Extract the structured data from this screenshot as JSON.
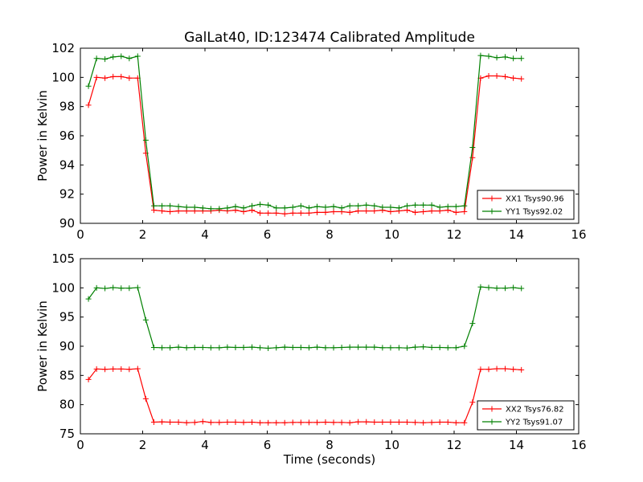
{
  "figure": {
    "title": "GalLat40, ID:123474 Calibrated Amplitude"
  },
  "chart_data": [
    {
      "type": "line",
      "title": "GalLat40, ID:123474 Calibrated Amplitude",
      "xlabel": "",
      "ylabel": "Power in Kelvin",
      "xlim": [
        0,
        16
      ],
      "ylim": [
        90,
        102
      ],
      "xticks": [
        "0",
        "2",
        "4",
        "6",
        "8",
        "10",
        "12",
        "14",
        "16"
      ],
      "yticks": [
        "90",
        "92",
        "94",
        "96",
        "98",
        "100",
        "102"
      ],
      "grid": false,
      "legend_position": "lower right",
      "x": [
        0.26,
        0.52,
        0.79,
        1.05,
        1.31,
        1.57,
        1.84,
        2.1,
        2.36,
        2.62,
        2.88,
        3.15,
        3.41,
        3.67,
        3.93,
        4.19,
        4.46,
        4.72,
        4.98,
        5.24,
        5.51,
        5.77,
        6.03,
        6.29,
        6.56,
        6.82,
        7.08,
        7.34,
        7.6,
        7.87,
        8.13,
        8.39,
        8.65,
        8.92,
        9.18,
        9.44,
        9.7,
        9.96,
        10.23,
        10.49,
        10.75,
        11.01,
        11.28,
        11.54,
        11.8,
        12.06,
        12.33,
        12.59,
        12.85,
        13.11,
        13.37,
        13.64,
        13.9,
        14.16
      ],
      "series": [
        {
          "name": "XX1 Tsys90.96",
          "color": "#ff0000",
          "values": [
            98.1,
            100.0,
            99.95,
            100.05,
            100.05,
            99.95,
            99.95,
            94.8,
            90.9,
            90.85,
            90.8,
            90.85,
            90.85,
            90.85,
            90.85,
            90.85,
            90.9,
            90.85,
            90.9,
            90.8,
            90.9,
            90.7,
            90.7,
            90.7,
            90.65,
            90.7,
            90.7,
            90.7,
            90.75,
            90.75,
            90.8,
            90.8,
            90.75,
            90.85,
            90.85,
            90.85,
            90.9,
            90.8,
            90.85,
            90.9,
            90.75,
            90.8,
            90.85,
            90.85,
            90.9,
            90.75,
            90.8,
            94.5,
            99.95,
            100.1,
            100.1,
            100.05,
            99.95,
            99.9
          ]
        },
        {
          "name": "YY1 Tsys92.02",
          "color": "#008000",
          "values": [
            99.4,
            101.3,
            101.25,
            101.4,
            101.45,
            101.3,
            101.45,
            95.7,
            91.2,
            91.2,
            91.2,
            91.15,
            91.1,
            91.1,
            91.05,
            91.0,
            91.0,
            91.05,
            91.15,
            91.05,
            91.2,
            91.3,
            91.25,
            91.05,
            91.05,
            91.1,
            91.2,
            91.05,
            91.15,
            91.1,
            91.15,
            91.05,
            91.2,
            91.2,
            91.25,
            91.2,
            91.1,
            91.1,
            91.05,
            91.2,
            91.25,
            91.25,
            91.25,
            91.1,
            91.15,
            91.15,
            91.2,
            95.2,
            101.5,
            101.45,
            101.35,
            101.4,
            101.3,
            101.3
          ]
        }
      ]
    },
    {
      "type": "line",
      "title": "",
      "xlabel": "Time (seconds)",
      "ylabel": "Power in Kelvin",
      "xlim": [
        0,
        16
      ],
      "ylim": [
        75,
        105
      ],
      "xticks": [
        "0",
        "2",
        "4",
        "6",
        "8",
        "10",
        "12",
        "14",
        "16"
      ],
      "yticks": [
        "75",
        "80",
        "85",
        "90",
        "95",
        "100",
        "105"
      ],
      "grid": false,
      "legend_position": "lower right",
      "x": [
        0.26,
        0.52,
        0.79,
        1.05,
        1.31,
        1.57,
        1.84,
        2.1,
        2.36,
        2.62,
        2.88,
        3.15,
        3.41,
        3.67,
        3.93,
        4.19,
        4.46,
        4.72,
        4.98,
        5.24,
        5.51,
        5.77,
        6.03,
        6.29,
        6.56,
        6.82,
        7.08,
        7.34,
        7.6,
        7.87,
        8.13,
        8.39,
        8.65,
        8.92,
        9.18,
        9.44,
        9.7,
        9.96,
        10.23,
        10.49,
        10.75,
        11.01,
        11.28,
        11.54,
        11.8,
        12.06,
        12.33,
        12.59,
        12.85,
        13.11,
        13.37,
        13.64,
        13.9,
        14.16
      ],
      "series": [
        {
          "name": "XX2 Tsys76.82",
          "color": "#ff0000",
          "values": [
            84.3,
            86.1,
            86.05,
            86.1,
            86.1,
            86.05,
            86.15,
            81.0,
            77.0,
            77.05,
            77.0,
            77.0,
            76.9,
            76.95,
            77.1,
            76.95,
            76.95,
            77.0,
            77.0,
            76.95,
            77.0,
            76.9,
            76.9,
            76.9,
            76.9,
            76.95,
            76.95,
            76.95,
            76.95,
            77.0,
            76.95,
            76.95,
            76.9,
            77.05,
            77.05,
            77.0,
            77.0,
            77.0,
            77.0,
            77.0,
            76.95,
            76.9,
            76.95,
            77.0,
            77.0,
            76.9,
            76.9,
            80.4,
            86.05,
            86.05,
            86.15,
            86.15,
            86.05,
            85.95
          ]
        },
        {
          "name": "YY2 Tsys91.07",
          "color": "#008000",
          "values": [
            98.1,
            100.0,
            99.9,
            100.05,
            99.95,
            99.95,
            100.05,
            94.5,
            89.8,
            89.75,
            89.75,
            89.85,
            89.75,
            89.8,
            89.8,
            89.75,
            89.75,
            89.85,
            89.8,
            89.8,
            89.85,
            89.75,
            89.65,
            89.75,
            89.85,
            89.8,
            89.8,
            89.75,
            89.85,
            89.75,
            89.75,
            89.8,
            89.85,
            89.85,
            89.85,
            89.85,
            89.75,
            89.75,
            89.75,
            89.7,
            89.85,
            89.9,
            89.8,
            89.8,
            89.75,
            89.75,
            90.0,
            93.9,
            100.15,
            100.05,
            99.95,
            99.95,
            100.05,
            99.9
          ]
        }
      ]
    }
  ]
}
